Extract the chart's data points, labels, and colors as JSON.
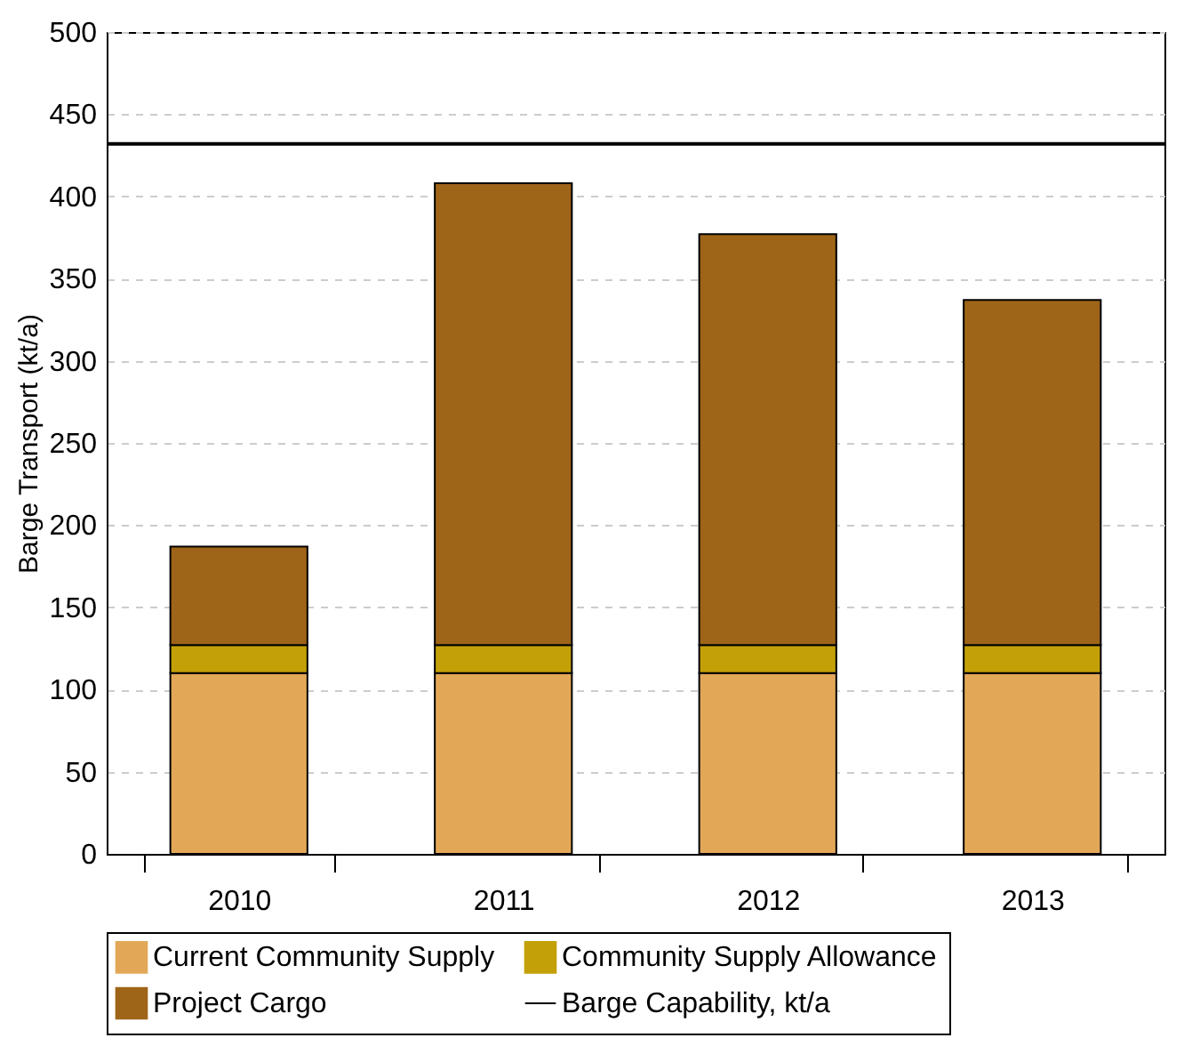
{
  "chart_data": {
    "type": "bar",
    "ylabel": "Barge Transport (kt/a)",
    "categories": [
      "2010",
      "2011",
      "2012",
      "2013"
    ],
    "stacked": true,
    "series": [
      {
        "name": "Current Community Supply",
        "color": "#e3a857",
        "values": [
          110,
          110,
          110,
          110
        ]
      },
      {
        "name": "Community Supply Allowance",
        "color": "#c4a008",
        "values": [
          17,
          17,
          17,
          17
        ]
      },
      {
        "name": "Project Cargo",
        "color": "#9e6418",
        "values": [
          60,
          281,
          250,
          210
        ]
      }
    ],
    "ref_lines": [
      {
        "axis": "y",
        "value": 432,
        "label": "Barge Capability, kt/a",
        "color": "#000000"
      }
    ],
    "ylim": [
      0,
      500
    ],
    "yticks": [
      0,
      50,
      100,
      150,
      200,
      250,
      300,
      350,
      400,
      450,
      500
    ],
    "grid": "y",
    "legend": "bottom"
  }
}
